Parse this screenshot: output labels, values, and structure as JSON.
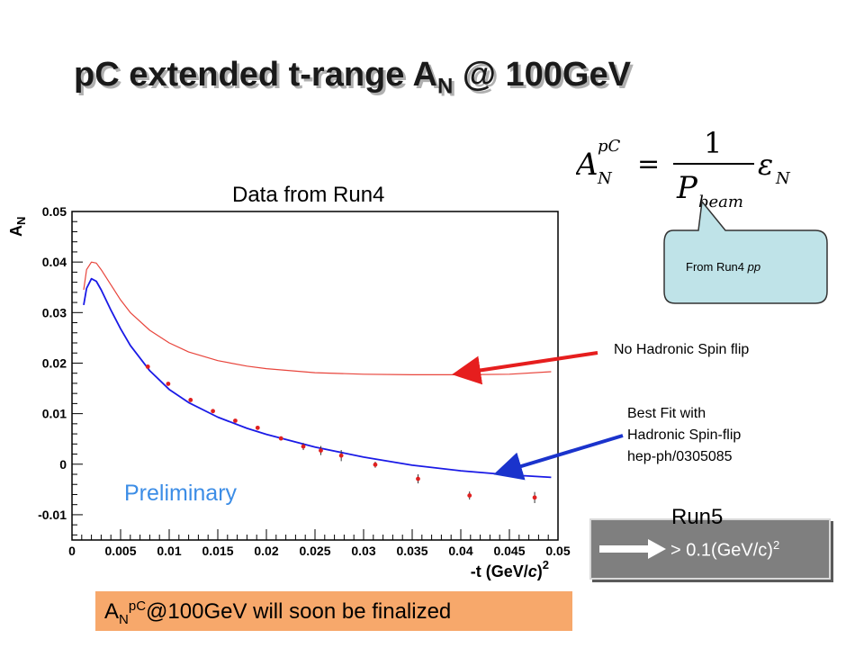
{
  "title": {
    "main": "pC extended t-range A",
    "sub": "N",
    "rest": " @ 100GeV"
  },
  "formula": {
    "lhs": "A",
    "lhs_sup": "pC",
    "lhs_sub": "N",
    "num": "1",
    "den": "P",
    "den_sub": "beam",
    "eps": "ε",
    "eps_sub": "N"
  },
  "callout": {
    "text": "From Run4 ",
    "text_italic": "pp"
  },
  "data_from": "Data from Run4",
  "annotations": {
    "no_hadronic": "No Hadronic Spin flip",
    "best_fit_line1": "Best Fit with",
    "best_fit_line2": "Hadronic Spin-flip",
    "best_fit_line3": "hep-ph/0305085"
  },
  "preliminary": "Preliminary",
  "run5": {
    "label": "Run5",
    "text": "> 0.1(GeV/c)",
    "text_sup": "2"
  },
  "finalize": {
    "a": "A",
    "a_sub": "N",
    "a_sup": "pC",
    "rest": "@100GeV will soon be finalized"
  },
  "colors": {
    "red_curve": "#e8453c",
    "blue_curve": "#1a1ae6",
    "points": "#e02020",
    "preliminary": "#3c8de6",
    "callout_fill": "#bfe3e8",
    "finalize_fill": "#f7a86b",
    "run5_fill": "#7f7f7f"
  },
  "chart_data": {
    "type": "line",
    "ylabel": "A",
    "ylabel_sub": "N",
    "xlabel": "-t (GeV/",
    "xlabel_c": "c",
    "xlabel_end": ")",
    "xlabel_sup": "2",
    "xlim": [
      0,
      0.05
    ],
    "ylim": [
      -0.015,
      0.05
    ],
    "xticks": [
      0,
      0.005,
      0.01,
      0.015,
      0.02,
      0.025,
      0.03,
      0.035,
      0.04,
      0.045,
      0.05
    ],
    "xtick_labels": [
      "0",
      "0.005",
      "0.01",
      "0.015",
      "0.02",
      "0.025",
      "0.03",
      "0.035",
      "0.04",
      "0.045",
      "0.05"
    ],
    "yticks": [
      -0.01,
      0,
      0.01,
      0.02,
      0.03,
      0.04,
      0.05
    ],
    "ytick_labels": [
      "-0.01",
      "0",
      "0.01",
      "0.02",
      "0.03",
      "0.04",
      "0.05"
    ],
    "series": [
      {
        "label": "No Hadronic Spin flip",
        "x": [
          0.0012,
          0.0015,
          0.002,
          0.0025,
          0.003,
          0.004,
          0.005,
          0.006,
          0.008,
          0.01,
          0.012,
          0.015,
          0.018,
          0.02,
          0.025,
          0.03,
          0.035,
          0.04,
          0.045,
          0.0493
        ],
        "y": [
          0.0345,
          0.0385,
          0.04,
          0.0398,
          0.0385,
          0.0355,
          0.0325,
          0.03,
          0.0265,
          0.024,
          0.0222,
          0.0205,
          0.0194,
          0.0189,
          0.0181,
          0.0178,
          0.0177,
          0.0177,
          0.0178,
          0.0183
        ]
      },
      {
        "label": "Best Fit with Hadronic Spin-flip",
        "x": [
          0.0012,
          0.0015,
          0.002,
          0.0025,
          0.003,
          0.004,
          0.005,
          0.006,
          0.008,
          0.01,
          0.012,
          0.015,
          0.018,
          0.02,
          0.025,
          0.03,
          0.035,
          0.04,
          0.045,
          0.0493
        ],
        "y": [
          0.0315,
          0.0348,
          0.0367,
          0.0362,
          0.0345,
          0.0305,
          0.0268,
          0.0235,
          0.0185,
          0.0148,
          0.0122,
          0.0093,
          0.0071,
          0.0059,
          0.0034,
          0.0014,
          -0.0002,
          -0.0013,
          -0.0021,
          -0.0026
        ]
      }
    ],
    "points": {
      "x": [
        0.0078,
        0.0099,
        0.0122,
        0.0145,
        0.0168,
        0.0191,
        0.0215,
        0.0238,
        0.0256,
        0.0277,
        0.0312,
        0.0356,
        0.0409,
        0.0476
      ],
      "y": [
        0.0193,
        0.0159,
        0.0127,
        0.0105,
        0.0086,
        0.0072,
        0.0051,
        0.0035,
        0.0027,
        0.0017,
        -0.0001,
        -0.0029,
        -0.0062,
        -0.0066
      ],
      "err": [
        0,
        0,
        0,
        0,
        0,
        0,
        0.0004,
        0.0007,
        0.0009,
        0.0011,
        0.0006,
        0.0009,
        0.0008,
        0.0011
      ]
    }
  }
}
